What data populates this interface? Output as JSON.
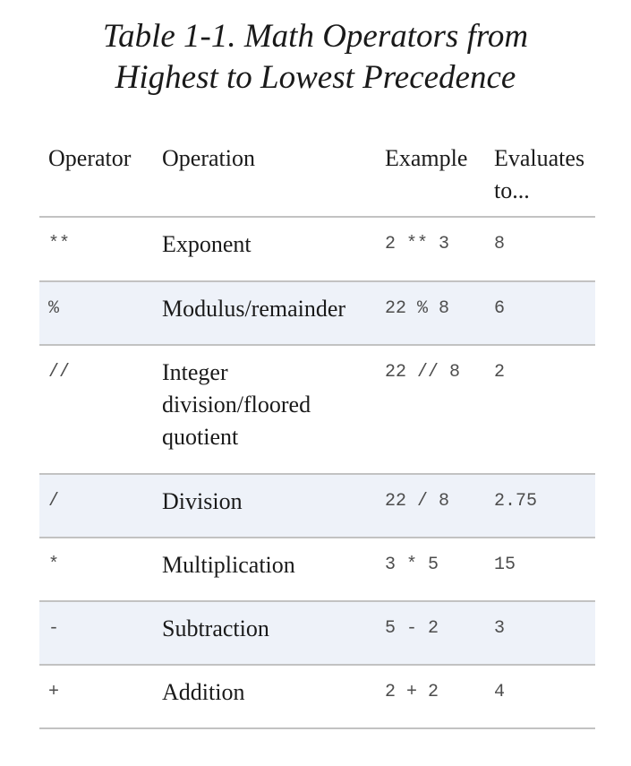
{
  "caption": {
    "line1": "Table 1-1. Math Operators from",
    "line2": "Highest to Lowest Precedence"
  },
  "table": {
    "headers": [
      "Operator",
      "Operation",
      "Example",
      "Evaluates to..."
    ],
    "rows": [
      {
        "operator": "**",
        "operation": "Exponent",
        "example": "2 ** 3",
        "result": "8"
      },
      {
        "operator": "%",
        "operation": "Modulus/remainder",
        "example": "22 % 8",
        "result": "6"
      },
      {
        "operator": "//",
        "operation": "Integer division/floored quotient",
        "example": "22 // 8",
        "result": "2"
      },
      {
        "operator": "/",
        "operation": "Division",
        "example": "22 / 8",
        "result": "2.75"
      },
      {
        "operator": "*",
        "operation": "Multiplication",
        "example": "3 * 5",
        "result": "15"
      },
      {
        "operator": "-",
        "operation": "Subtraction",
        "example": "5 - 2",
        "result": "3"
      },
      {
        "operator": "+",
        "operation": "Addition",
        "example": "2 + 2",
        "result": "4"
      }
    ],
    "stripe_color": "#eef2f9",
    "rule_color": "#c2c2c2"
  }
}
